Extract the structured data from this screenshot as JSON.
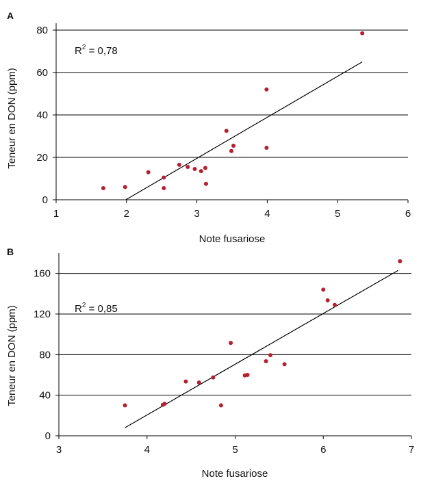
{
  "colors": {
    "points": "#b5202e",
    "lines": "#000000"
  },
  "chart_data": [
    {
      "type": "scatter",
      "panel_label": "A",
      "xlabel": "Note fusariose",
      "ylabel": "Teneur en DON (ppm)",
      "xlim": [
        1,
        6
      ],
      "ylim": [
        0,
        80
      ],
      "xticks": [
        1,
        2,
        3,
        4,
        5,
        6
      ],
      "yticks": [
        0,
        20,
        40,
        60,
        80
      ],
      "grid": "horizontal",
      "annotation": {
        "prefix": "R",
        "sup": "2",
        "value": " = 0,78"
      },
      "points": [
        {
          "x": 1.67,
          "y": 5.5
        },
        {
          "x": 1.98,
          "y": 6.0
        },
        {
          "x": 2.31,
          "y": 13.0
        },
        {
          "x": 2.53,
          "y": 10.5
        },
        {
          "x": 2.53,
          "y": 5.5
        },
        {
          "x": 2.75,
          "y": 16.5
        },
        {
          "x": 2.87,
          "y": 15.5
        },
        {
          "x": 2.97,
          "y": 14.5
        },
        {
          "x": 3.06,
          "y": 13.5
        },
        {
          "x": 3.12,
          "y": 15.0
        },
        {
          "x": 3.13,
          "y": 7.5
        },
        {
          "x": 3.42,
          "y": 32.5
        },
        {
          "x": 3.49,
          "y": 23.0
        },
        {
          "x": 3.52,
          "y": 25.5
        },
        {
          "x": 3.99,
          "y": 52.0
        },
        {
          "x": 3.99,
          "y": 24.5
        },
        {
          "x": 5.35,
          "y": 78.5
        }
      ],
      "trendline": [
        {
          "x": 1.99,
          "y": 0
        },
        {
          "x": 5.35,
          "y": 65
        }
      ]
    },
    {
      "type": "scatter",
      "panel_label": "B",
      "xlabel": "Note fusariose",
      "ylabel": "Teneur en DON (ppm)",
      "xlim": [
        3,
        7
      ],
      "ylim": [
        0,
        180
      ],
      "xticks": [
        3,
        4,
        5,
        6,
        7
      ],
      "yticks": [
        0,
        40,
        80,
        120,
        160
      ],
      "grid": "horizontal",
      "annotation": {
        "prefix": "R",
        "sup": "2",
        "value": " = 0,85"
      },
      "points": [
        {
          "x": 3.75,
          "y": 30
        },
        {
          "x": 4.18,
          "y": 30.5
        },
        {
          "x": 4.2,
          "y": 31.5
        },
        {
          "x": 4.44,
          "y": 53.5
        },
        {
          "x": 4.59,
          "y": 52.5
        },
        {
          "x": 4.75,
          "y": 57.5
        },
        {
          "x": 4.84,
          "y": 30
        },
        {
          "x": 4.95,
          "y": 91.5
        },
        {
          "x": 5.11,
          "y": 59.5
        },
        {
          "x": 5.14,
          "y": 60
        },
        {
          "x": 5.35,
          "y": 73.5
        },
        {
          "x": 5.4,
          "y": 79.5
        },
        {
          "x": 5.56,
          "y": 70.5
        },
        {
          "x": 6.0,
          "y": 144
        },
        {
          "x": 6.05,
          "y": 133.5
        },
        {
          "x": 6.13,
          "y": 129
        },
        {
          "x": 6.87,
          "y": 172
        }
      ],
      "trendline": [
        {
          "x": 3.75,
          "y": 8
        },
        {
          "x": 6.85,
          "y": 163
        }
      ]
    }
  ]
}
